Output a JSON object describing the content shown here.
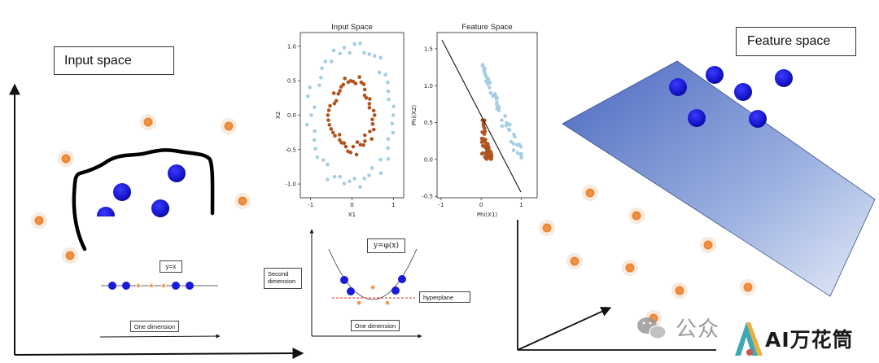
{
  "left_panel": {
    "title": "Input space",
    "eq_label": "y=x",
    "axis_label": "One dimension"
  },
  "middle_top": {
    "input_plot": {
      "title": "Input Space",
      "xlabel": "X1",
      "ylabel": "X2",
      "xticks": [
        "-1",
        "0",
        "1"
      ],
      "yticks": [
        "1.0",
        "0.5",
        "0.0",
        "-0.5",
        "-1.0"
      ]
    },
    "feature_plot": {
      "title": "Feature Space",
      "xlabel": "Phi(X1)",
      "ylabel": "Phi(X2)",
      "xticks": [
        "-1",
        "0",
        "1"
      ],
      "yticks": [
        "1.5",
        "1.0",
        "0.5",
        "0.0",
        "-0.5"
      ]
    }
  },
  "middle_bottom": {
    "second_dimension_label": "Second dimension",
    "eq_label": "y=φ(x)",
    "hyperplane_label": "hyperplane",
    "axis_label": "One dimension"
  },
  "right_panel": {
    "title": "Feature space"
  },
  "watermark": {
    "text_left": "公众",
    "text_right": "AI万花筒"
  },
  "colors": {
    "blue_class": "#1a1adb",
    "orange_class": "#e8833a",
    "light_blue_points": "#a6cee3",
    "brown_points": "#b0541f",
    "plane_dark": "#5573c5",
    "plane_light": "#dde6f7"
  }
}
